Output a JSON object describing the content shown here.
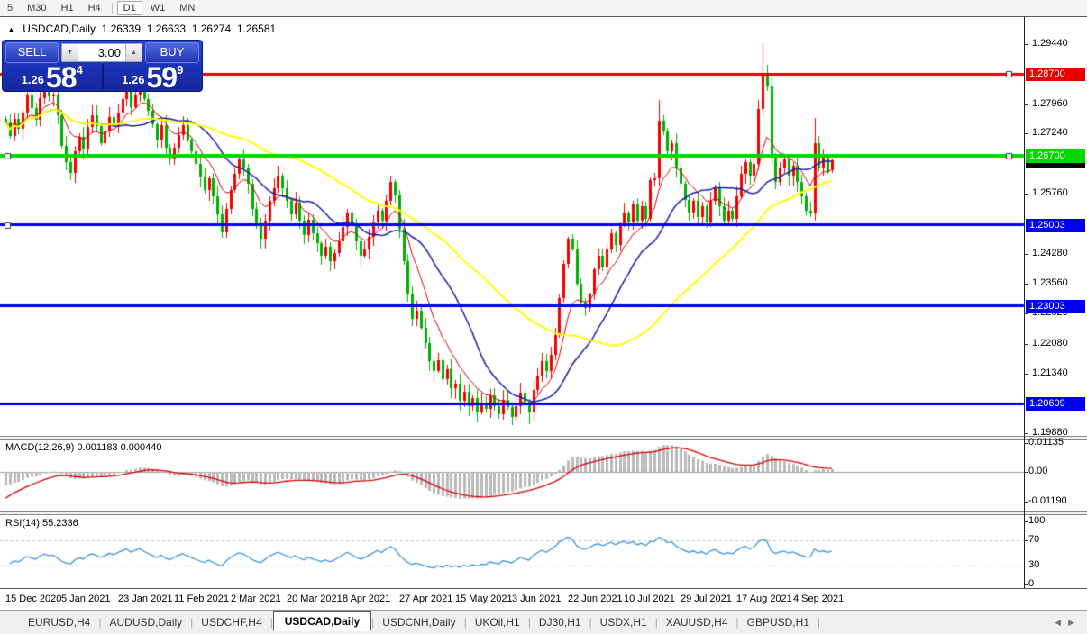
{
  "colors": {
    "bull": "#f20000",
    "bear": "#00ae00",
    "ma_fast": "#d40000",
    "ma_mid": "#1c1cae",
    "ma_slow": "#ffff00",
    "hline_red": "#e80000",
    "hline_green": "#00d800",
    "hline_blue": "#0000f0",
    "current_tag": "#000000",
    "macd_hist": "#b9b9b9",
    "macd_signal": "#dd0000",
    "rsi_line": "#2a8fe0",
    "rsi_dash": "#c0c0c0",
    "macd_zero": "#a0a0a0"
  },
  "toolbar": {
    "timeframes": [
      {
        "label": "5",
        "active": false
      },
      {
        "label": "M30",
        "active": false
      },
      {
        "label": "H1",
        "active": false
      },
      {
        "label": "H4",
        "active": false
      },
      {
        "label": "D1",
        "active": true
      },
      {
        "label": "W1",
        "active": false
      },
      {
        "label": "MN",
        "active": false
      }
    ],
    "separator_before": "D1"
  },
  "title": {
    "marker": "▲",
    "symbol": "USDCAD,Daily",
    "open": "1.26339",
    "high": "1.26633",
    "low": "1.26274",
    "close": "1.26581"
  },
  "trade_panel": {
    "sell_label": "SELL",
    "buy_label": "BUY",
    "volume": "3.00",
    "spinner_down_icon": "▼",
    "spinner_up_icon": "▲",
    "sell_price_head": "1.26",
    "sell_price_big": "58",
    "sell_price_sup": "4",
    "buy_price_head": "1.26",
    "buy_price_big": "59",
    "buy_price_sup": "9"
  },
  "chart_data": {
    "type": "candlestick",
    "symbol": "USDCAD",
    "timeframe": "Daily",
    "ylim": [
      1.193,
      1.2975
    ],
    "first_open": 1.276,
    "closes": [
      1.2752,
      1.2718,
      1.276,
      1.2735,
      1.2775,
      1.282,
      1.2786,
      1.2759,
      1.2812,
      1.2842,
      1.2815,
      1.282,
      1.277,
      1.2695,
      1.2655,
      1.2628,
      1.268,
      1.2715,
      1.2685,
      1.274,
      1.277,
      1.2742,
      1.27,
      1.273,
      1.2765,
      1.2742,
      1.2775,
      1.2808,
      1.2835,
      1.279,
      1.282,
      1.2848,
      1.281,
      1.278,
      1.2746,
      1.271,
      1.2745,
      1.269,
      1.2662,
      1.269,
      1.272,
      1.2745,
      1.271,
      1.268,
      1.265,
      1.2618,
      1.2585,
      1.2614,
      1.257,
      1.2525,
      1.2482,
      1.254,
      1.2585,
      1.2625,
      1.266,
      1.264,
      1.26,
      1.254,
      1.25,
      1.2465,
      1.251,
      1.256,
      1.259,
      1.262,
      1.259,
      1.256,
      1.2525,
      1.2555,
      1.251,
      1.2475,
      1.2512,
      1.248,
      1.2455,
      1.2425,
      1.2445,
      1.241,
      1.243,
      1.246,
      1.2495,
      1.253,
      1.2498,
      1.246,
      1.2425,
      1.244,
      1.247,
      1.2505,
      1.2535,
      1.251,
      1.256,
      1.2605,
      1.2575,
      1.249,
      1.241,
      1.233,
      1.227,
      1.229,
      1.2248,
      1.221,
      1.2165,
      1.214,
      1.2168,
      1.212,
      1.2145,
      1.2098,
      1.211,
      1.2068,
      1.209,
      1.2055,
      1.2075,
      1.204,
      1.2062,
      1.2048,
      1.208,
      1.2055,
      1.2035,
      1.207,
      1.2052,
      1.2028,
      1.2055,
      1.2088,
      1.2065,
      1.204,
      1.2095,
      1.213,
      1.2165,
      1.214,
      1.218,
      1.223,
      1.232,
      1.2405,
      1.2465,
      1.244,
      1.2355,
      1.231,
      1.2295,
      1.233,
      1.239,
      1.2425,
      1.2395,
      1.244,
      1.248,
      1.245,
      1.25,
      1.253,
      1.2505,
      1.255,
      1.251,
      1.2545,
      1.2515,
      1.261,
      1.2615,
      1.2755,
      1.273,
      1.268,
      1.27,
      1.264,
      1.26,
      1.2562,
      1.253,
      1.256,
      1.252,
      1.2545,
      1.2505,
      1.256,
      1.259,
      1.2545,
      1.251,
      1.2535,
      1.2515,
      1.257,
      1.2625,
      1.2655,
      1.262,
      1.265,
      1.2785,
      1.287,
      1.284,
      1.2665,
      1.2605,
      1.264,
      1.266,
      1.262,
      1.2645,
      1.2605,
      1.257,
      1.2535,
      1.2528,
      1.27,
      1.264,
      1.2665,
      1.263,
      1.26581
    ],
    "overrides": {
      "50": {
        "low": 1.2468
      },
      "82": {
        "low": 1.2395
      },
      "94": {
        "low": 1.2252
      },
      "109": {
        "low": 1.2015
      },
      "117": {
        "low": 1.2007
      },
      "121": {
        "low": 1.201
      },
      "151": {
        "high": 1.2807
      },
      "175": {
        "high": 1.2949,
        "low": 1.277
      },
      "187": {
        "high": 1.2762
      },
      "191": {
        "open": 1.26339,
        "high": 1.26633,
        "low": 1.26274,
        "close": 1.26581
      }
    },
    "moving_averages": [
      {
        "period": 9,
        "kind": "ema",
        "color": "#d40000",
        "width": 1
      },
      {
        "period": 20,
        "kind": "sma",
        "color": "#1c1cae",
        "width": 1.5
      },
      {
        "period": 50,
        "kind": "sma",
        "color": "#ffff00",
        "width": 2
      }
    ],
    "hlines": [
      {
        "price": 1.287,
        "label": "1.28700",
        "color": "#e80000",
        "width": 3,
        "handles": [
          "right"
        ]
      },
      {
        "price": 1.267,
        "label": "1.26700",
        "color": "#00d800",
        "width": 4,
        "handles": [
          "left",
          "right"
        ]
      },
      {
        "price": 1.25003,
        "label": "1.25003",
        "color": "#0000f0",
        "width": 3,
        "handles": [
          "left"
        ]
      },
      {
        "price": 1.23003,
        "label": "1.23003",
        "color": "#0000f0",
        "width": 3,
        "handles": []
      },
      {
        "price": 1.20609,
        "label": "1.20609",
        "color": "#0000f0",
        "width": 3,
        "handles": []
      }
    ],
    "current_price": {
      "value": 1.26581,
      "label": "1.26581"
    },
    "price_ticks": [
      {
        "label": "1.29440",
        "value": 1.2944
      },
      {
        "label": "1.27960",
        "value": 1.2796
      },
      {
        "label": "1.27240",
        "value": 1.2724
      },
      {
        "label": "1.25760",
        "value": 1.2576
      },
      {
        "label": "1.24280",
        "value": 1.2428
      },
      {
        "label": "1.23560",
        "value": 1.2356
      },
      {
        "label": "1.22820",
        "value": 1.2282
      },
      {
        "label": "1.22080",
        "value": 1.2208
      },
      {
        "label": "1.21340",
        "value": 1.2134
      },
      {
        "label": "1.19880",
        "value": 1.1988
      }
    ],
    "macd": {
      "name": "MACD(12,26,9)",
      "main_value": "0.001183",
      "signal_value": "0.000440",
      "scale": [
        {
          "label": "0.01135",
          "value": 0.01135
        },
        {
          "label": "0.00",
          "value": 0
        },
        {
          "label": "-0.01190",
          "value": -0.0119
        }
      ]
    },
    "rsi": {
      "name": "RSI(14)",
      "value": "55.2336",
      "scale": [
        {
          "label": "100",
          "value": 100
        },
        {
          "label": "70",
          "value": 70
        },
        {
          "label": "30",
          "value": 30
        },
        {
          "label": "0",
          "value": 0
        }
      ],
      "levels": [
        70,
        30
      ]
    },
    "date_ticks": [
      {
        "label": "15 Dec 2020",
        "index": 0
      },
      {
        "label": "5 Jan 2021",
        "index": 13
      },
      {
        "label": "23 Jan 2021",
        "index": 26
      },
      {
        "label": "11 Feb 2021",
        "index": 39
      },
      {
        "label": "2 Mar 2021",
        "index": 52
      },
      {
        "label": "20 Mar 2021",
        "index": 65
      },
      {
        "label": "8 Apr 2021",
        "index": 78
      },
      {
        "label": "27 Apr 2021",
        "index": 91
      },
      {
        "label": "15 May 2021",
        "index": 104
      },
      {
        "label": "3 Jun 2021",
        "index": 117
      },
      {
        "label": "22 Jun 2021",
        "index": 130
      },
      {
        "label": "10 Jul 2021",
        "index": 143
      },
      {
        "label": "29 Jul 2021",
        "index": 156
      },
      {
        "label": "17 Aug 2021",
        "index": 169
      },
      {
        "label": "4 Sep 2021",
        "index": 182
      }
    ]
  },
  "tabs": {
    "items": [
      {
        "label": "EURUSD,H4",
        "active": false
      },
      {
        "label": "AUDUSD,Daily",
        "active": false
      },
      {
        "label": "USDCHF,H4",
        "active": false
      },
      {
        "label": "USDCAD,Daily",
        "active": true
      },
      {
        "label": "USDCNH,Daily",
        "active": false
      },
      {
        "label": "UKOil,H1",
        "active": false
      },
      {
        "label": "DJ30,H1",
        "active": false
      },
      {
        "label": "USDX,H1",
        "active": false
      },
      {
        "label": "XAUUSD,H4",
        "active": false
      },
      {
        "label": "GBPUSD,H1",
        "active": false
      }
    ],
    "scroll_left_icon": "◀",
    "scroll_right_icon": "▶"
  }
}
